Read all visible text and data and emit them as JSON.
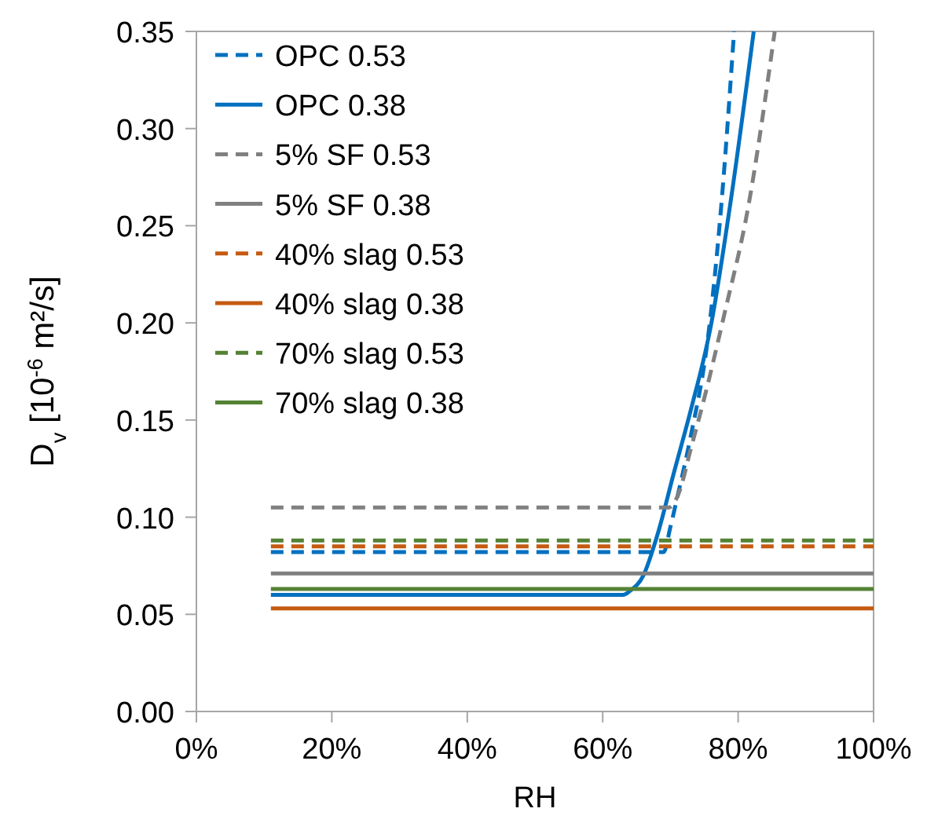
{
  "chart_data": {
    "type": "line",
    "xlabel": "RH",
    "ylabel": "D$_{v}$ [10$^{-6}$ m²/s]",
    "xlim": [
      0,
      100
    ],
    "xticks": [
      {
        "value": 0,
        "label": "0%"
      },
      {
        "value": 20,
        "label": "20%"
      },
      {
        "value": 40,
        "label": "40%"
      },
      {
        "value": 60,
        "label": "60%"
      },
      {
        "value": 80,
        "label": "80%"
      },
      {
        "value": 100,
        "label": "100%"
      }
    ],
    "ylim": [
      0,
      0.35
    ],
    "yticks": [
      {
        "value": 0,
        "label": "0.00"
      },
      {
        "value": 0.05,
        "label": "0.05"
      },
      {
        "value": 0.1,
        "label": "0.10"
      },
      {
        "value": 0.15,
        "label": "0.15"
      },
      {
        "value": 0.2,
        "label": "0.20"
      },
      {
        "value": 0.25,
        "label": "0.25"
      },
      {
        "value": 0.3,
        "label": "0.30"
      },
      {
        "value": 0.35,
        "label": "0.35"
      }
    ],
    "legend": "top left",
    "marker": "none",
    "series": [
      {
        "name": "OPC 0.53",
        "color": "#0070c0",
        "line_style": "dashed",
        "x": [
          11,
          69,
          70,
          71,
          72.9,
          75.6,
          77.5,
          79.4
        ],
        "values": [
          0.082,
          0.082,
          0.095,
          0.11,
          0.14,
          0.194,
          0.26,
          0.35
        ]
      },
      {
        "name": "OPC 0.38",
        "color": "#0070c0",
        "line_style": "solid",
        "x": [
          11,
          63,
          64,
          66,
          68,
          70.6,
          73,
          76,
          79,
          82.3
        ],
        "values": [
          0.06,
          0.06,
          0.062,
          0.07,
          0.09,
          0.124,
          0.155,
          0.199,
          0.265,
          0.35
        ]
      },
      {
        "name": "5% SF 0.53",
        "color": "#808080",
        "line_style": "dashed",
        "x": [
          11,
          69.8,
          70.5,
          71.3,
          73,
          75.2,
          78,
          81.4,
          85.4
        ],
        "values": [
          0.105,
          0.105,
          0.107,
          0.113,
          0.135,
          0.164,
          0.205,
          0.258,
          0.35
        ]
      },
      {
        "name": "5% SF 0.38",
        "color": "#808080",
        "line_style": "solid",
        "x": [
          11,
          100
        ],
        "values": [
          0.071,
          0.071
        ]
      },
      {
        "name": "40% slag 0.53",
        "color": "#c55a11",
        "line_style": "dashed",
        "x": [
          11,
          100
        ],
        "values": [
          0.085,
          0.085
        ]
      },
      {
        "name": "40% slag 0.38",
        "color": "#c55a11",
        "line_style": "solid",
        "x": [
          11,
          100
        ],
        "values": [
          0.053,
          0.053
        ]
      },
      {
        "name": "70% slag 0.53",
        "color": "#548235",
        "line_style": "dashed",
        "x": [
          11,
          100
        ],
        "values": [
          0.088,
          0.088
        ]
      },
      {
        "name": "70% slag 0.38",
        "color": "#548235",
        "line_style": "solid",
        "x": [
          11,
          100
        ],
        "values": [
          0.063,
          0.063
        ]
      }
    ]
  }
}
